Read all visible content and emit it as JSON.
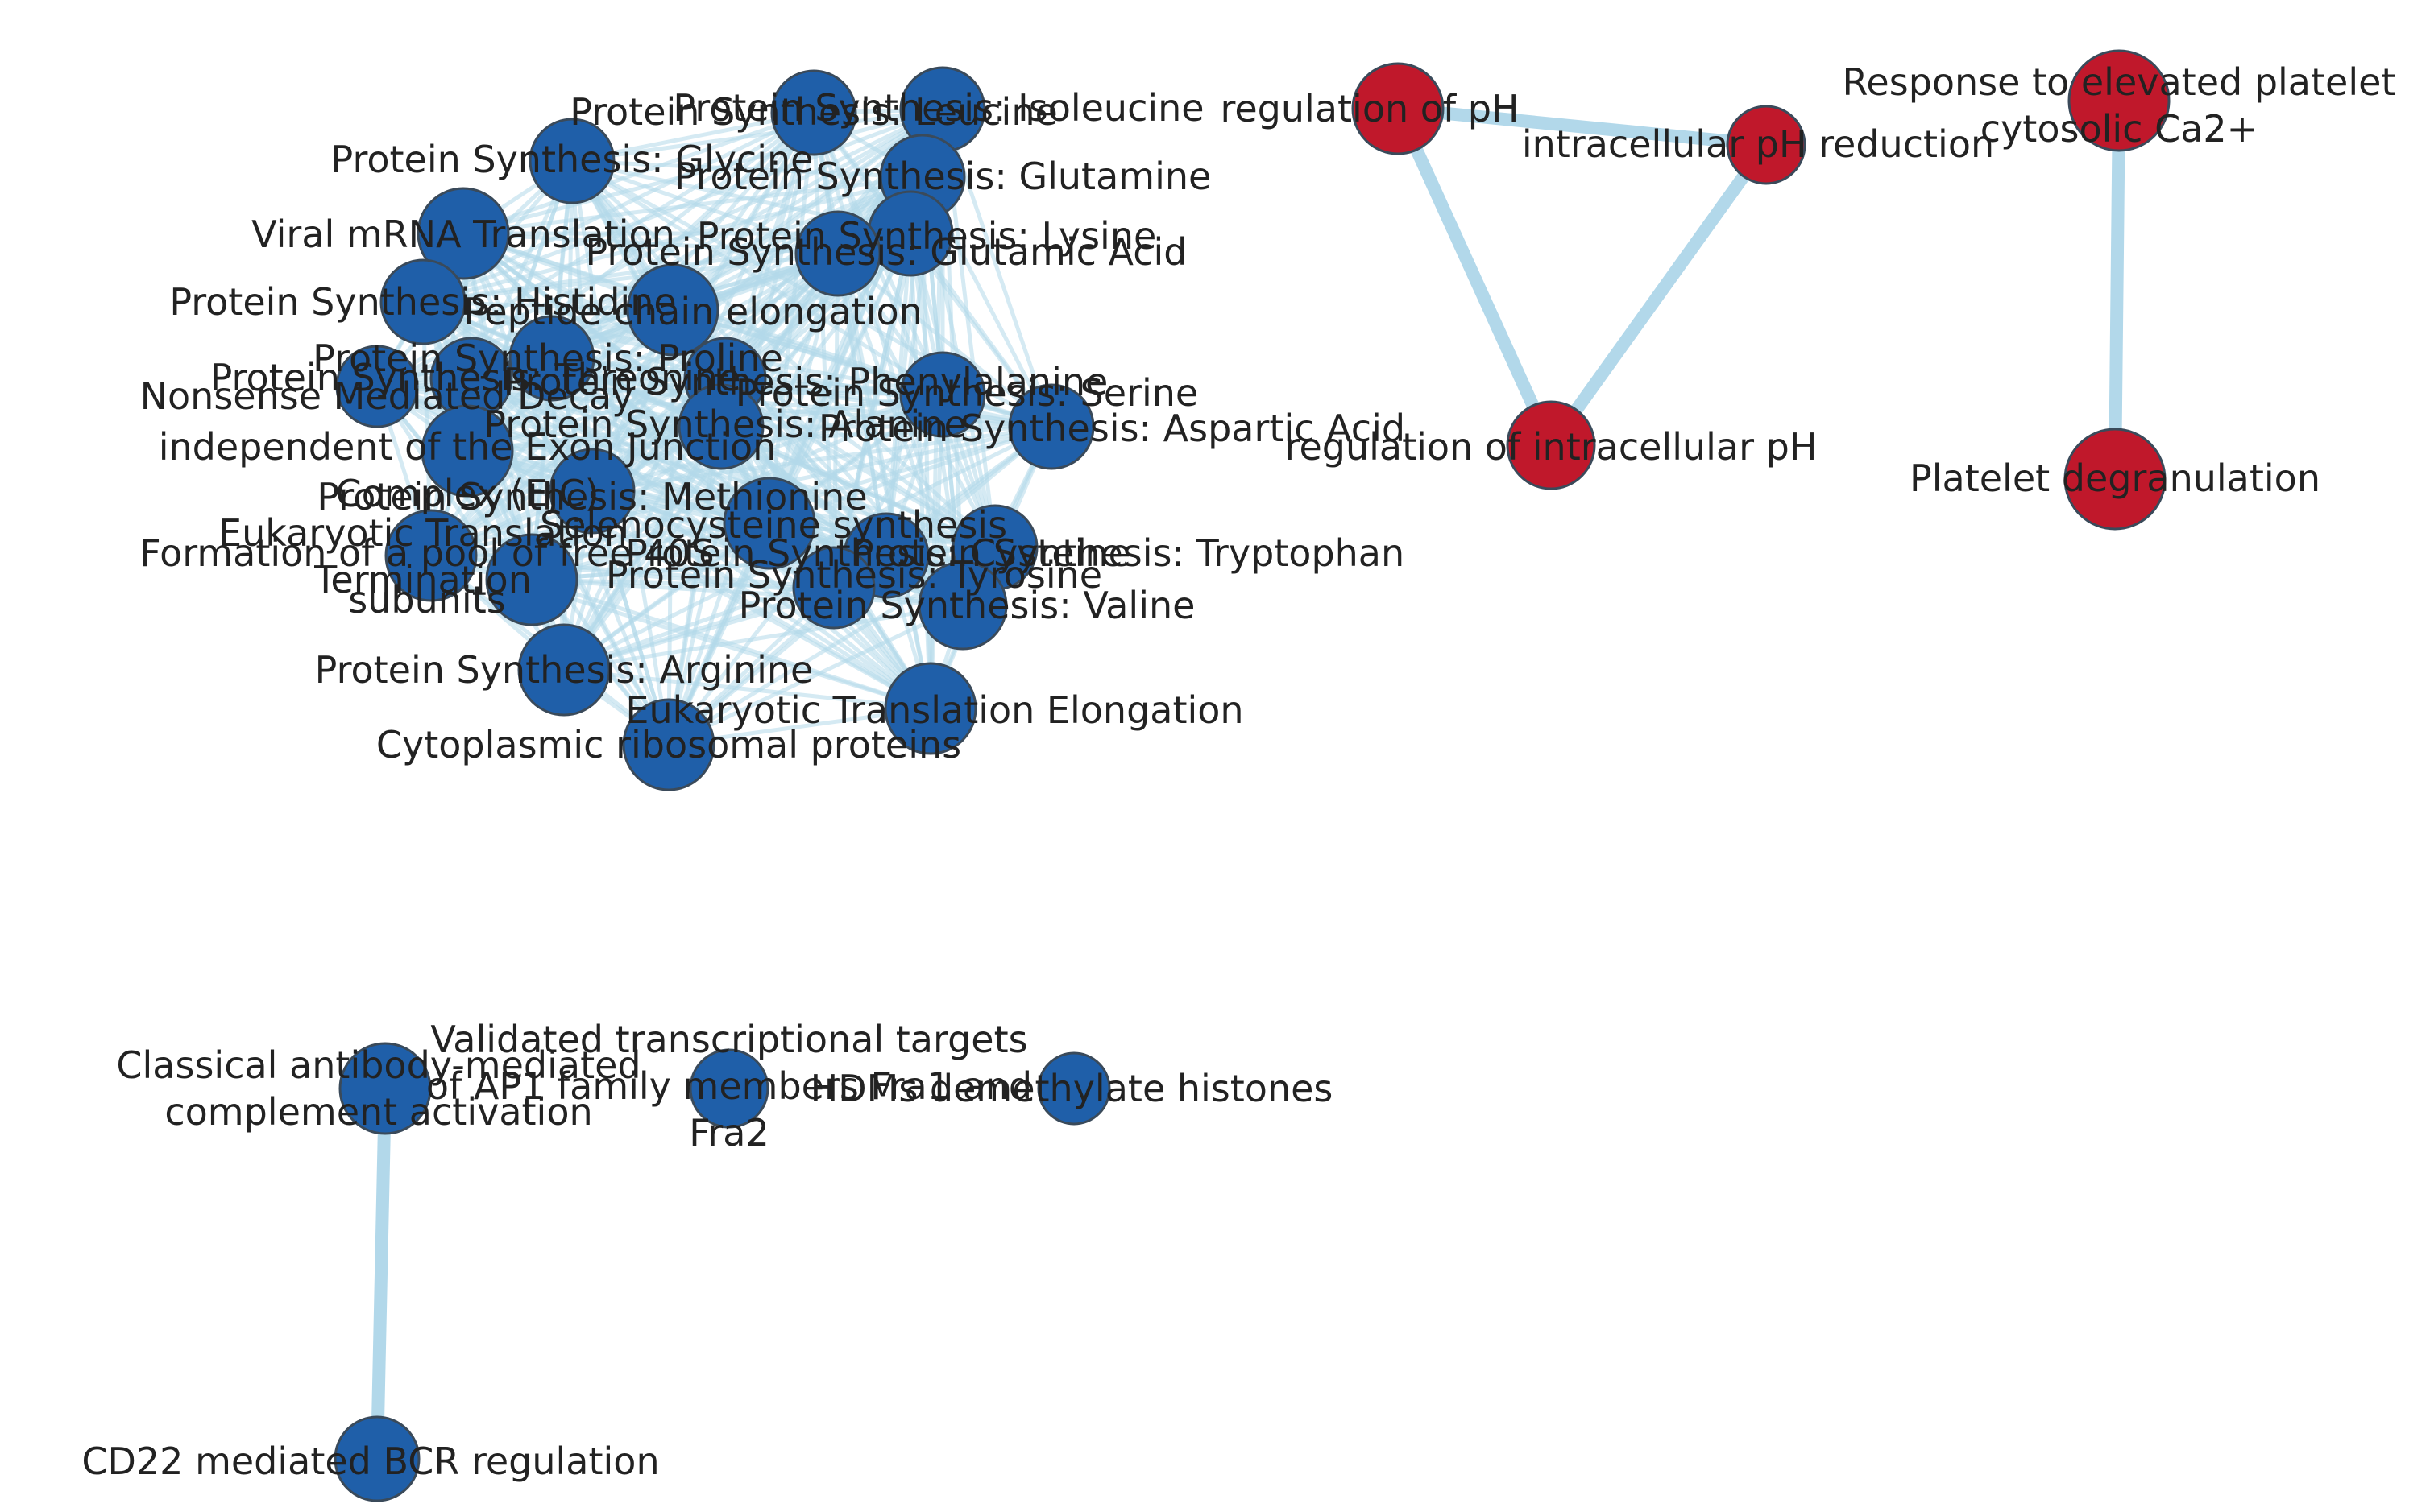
{
  "colors": {
    "edge": "#b2d8ea",
    "blue_node": "#1f5fa9",
    "red_node": "#c0182b",
    "node_border": "#3a4a5a",
    "label": "#222222",
    "background": "#ffffff"
  },
  "nodes": [
    {
      "id": "ps-leucine",
      "label": "Protein Synthesis: Leucine",
      "group": "blue"
    },
    {
      "id": "ps-isoleucine",
      "label": "Protein Synthesis: Isoleucine",
      "group": "blue"
    },
    {
      "id": "ps-glycine",
      "label": "Protein Synthesis: Glycine",
      "group": "blue"
    },
    {
      "id": "ps-glutamine",
      "label": "Protein Synthesis: Glutamine",
      "group": "blue"
    },
    {
      "id": "viral-mrna",
      "label": "Viral mRNA Translation",
      "group": "blue"
    },
    {
      "id": "ps-lysine",
      "label": "Protein Synthesis: Lysine",
      "group": "blue"
    },
    {
      "id": "ps-glutamic",
      "label": "Protein Synthesis: Glutamic Acid",
      "group": "blue"
    },
    {
      "id": "ps-histidine",
      "label": "Protein Synthesis: Histidine",
      "group": "blue"
    },
    {
      "id": "peptide-elong",
      "label": "Peptide chain elongation",
      "group": "blue"
    },
    {
      "id": "ps-proline",
      "label": "Protein Synthesis: Proline",
      "group": "blue"
    },
    {
      "id": "ps-threonine",
      "label": "Protein Synthesis: Threonine",
      "group": "blue"
    },
    {
      "id": "ps-phenylalanine",
      "label": "Protein Synthesis: Phenylalanine",
      "group": "blue"
    },
    {
      "id": "ps-serine",
      "label": "Protein Synthesis: Serine",
      "group": "blue"
    },
    {
      "id": "nmd",
      "label": "Nonsense Mediated Decay",
      "group": "blue"
    },
    {
      "id": "nmd-ejc",
      "label": "independent of the Exon Junction Complex (EJC)",
      "group": "blue"
    },
    {
      "id": "ps-alanine",
      "label": "Protein Synthesis: Alanine",
      "group": "blue"
    },
    {
      "id": "ps-aspartic",
      "label": "Protein Synthesis: Aspartic Acid",
      "group": "blue"
    },
    {
      "id": "ps-methionine",
      "label": "Protein Synthesis: Methionine",
      "group": "blue"
    },
    {
      "id": "euk-term",
      "label": "Eukaryotic Translation Termination",
      "group": "blue"
    },
    {
      "id": "seleno",
      "label": "Selenocysteine synthesis",
      "group": "blue"
    },
    {
      "id": "pool-40s",
      "label": "Formation of a pool of free 40S subunits",
      "group": "blue"
    },
    {
      "id": "ps-cysteine",
      "label": "Protein Synthesis: Cysteine",
      "group": "blue"
    },
    {
      "id": "ps-tryptophan",
      "label": "Protein Synthesis: Tryptophan",
      "group": "blue"
    },
    {
      "id": "ps-tyrosine",
      "label": "Protein Synthesis: Tyrosine",
      "group": "blue"
    },
    {
      "id": "ps-valine",
      "label": "Protein Synthesis: Valine",
      "group": "blue"
    },
    {
      "id": "ps-arginine",
      "label": "Protein Synthesis: Arginine",
      "group": "blue"
    },
    {
      "id": "euk-elong",
      "label": "Eukaryotic Translation Elongation",
      "group": "blue"
    },
    {
      "id": "cyto-ribo",
      "label": "Cytoplasmic ribosomal proteins",
      "group": "blue"
    },
    {
      "id": "reg-ph",
      "label": "regulation of pH",
      "group": "red"
    },
    {
      "id": "intra-ph-red",
      "label": "intracellular pH reduction",
      "group": "red"
    },
    {
      "id": "reg-intra-ph",
      "label": "regulation of intracellular pH",
      "group": "red"
    },
    {
      "id": "resp-ca",
      "label": "Response to elevated platelet cytosolic Ca2+",
      "group": "red"
    },
    {
      "id": "plt-degran",
      "label": "Platelet degranulation",
      "group": "red"
    },
    {
      "id": "classical-ab",
      "label": "Classical antibody-mediated complement activation",
      "group": "blue"
    },
    {
      "id": "cd22",
      "label": "CD22 mediated BCR regulation",
      "group": "blue"
    },
    {
      "id": "ap1-fra2",
      "label": "Validated transcriptional targets of AP1 family members Fra1 and Fra2",
      "group": "blue"
    },
    {
      "id": "hdm-demethylate",
      "label": "HDMs demethylate histones",
      "group": "blue"
    }
  ],
  "labels": {
    "ps-leucine": [
      "Protein Synthesis: Leucine"
    ],
    "ps-isoleucine": [
      "Protein Synthesis: Isoleucine"
    ],
    "ps-glycine": [
      "Protein Synthesis: Glycine"
    ],
    "ps-glutamine": [
      "Protein Synthesis: Glutamine"
    ],
    "viral-mrna": [
      "Viral mRNA Translation"
    ],
    "ps-lysine": [
      "Protein Synthesis: Lysine"
    ],
    "ps-glutamic": [
      "Protein Synthesis: Glutamic Acid"
    ],
    "ps-histidine": [
      "Protein Synthesis: Histidine"
    ],
    "peptide-elong": [
      "Peptide chain elongation"
    ],
    "ps-proline": [
      "Protein Synthesis: Proline"
    ],
    "ps-threonine": [
      "Protein Synthesis: Threonine"
    ],
    "ps-phenylalanine": [
      "Protein Synthesis: Phenylalanine"
    ],
    "ps-serine": [
      "Protein Synthesis: Serine"
    ],
    "nmd": [
      "Nonsense Mediated Decay"
    ],
    "nmd-ejc": [
      "independent of the Exon Junction",
      "Complex (EJC)"
    ],
    "ps-alanine": [
      "Protein Synthesis: Alanine"
    ],
    "ps-aspartic": [
      "Protein Synthesis: Aspartic Acid"
    ],
    "ps-methionine": [
      "Protein Synthesis: Methionine"
    ],
    "euk-term": [
      "Eukaryotic Translation",
      "Termination"
    ],
    "seleno": [
      "Selenocysteine synthesis"
    ],
    "pool-40s": [
      "Formation of a pool of free 40S",
      "subunits"
    ],
    "ps-cysteine": [
      "Protein Synthesis: Cysteine"
    ],
    "ps-tryptophan": [
      "Protein Synthesis: Tryptophan"
    ],
    "ps-tyrosine": [
      "Protein Synthesis: Tyrosine"
    ],
    "ps-valine": [
      "Protein Synthesis: Valine"
    ],
    "ps-arginine": [
      "Protein Synthesis: Arginine"
    ],
    "euk-elong": [
      "Eukaryotic Translation Elongation"
    ],
    "cyto-ribo": [
      "Cytoplasmic ribosomal proteins"
    ],
    "reg-ph": [
      "regulation of pH"
    ],
    "intra-ph-red": [
      "intracellular pH reduction"
    ],
    "reg-intra-ph": [
      "regulation of intracellular pH"
    ],
    "resp-ca": [
      "Response to elevated platelet",
      "cytosolic Ca2+"
    ],
    "plt-degran": [
      "Platelet degranulation"
    ],
    "classical-ab": [
      "Classical antibody-mediated",
      "complement activation"
    ],
    "cd22": [
      "CD22 mediated BCR regulation"
    ],
    "ap1-fra2": [
      "Validated transcriptional targets",
      "of AP1 family members Fra1 and",
      "Fra2"
    ],
    "hdm-demethylate": [
      "HDMs demethylate histones"
    ]
  },
  "edges": [
    [
      "reg-ph",
      "intra-ph-red"
    ],
    [
      "reg-ph",
      "reg-intra-ph"
    ],
    [
      "intra-ph-red",
      "reg-intra-ph"
    ],
    [
      "resp-ca",
      "plt-degran"
    ],
    [
      "classical-ab",
      "cd22"
    ]
  ],
  "dense_cluster": "all blue translation nodes fully interconnected"
}
